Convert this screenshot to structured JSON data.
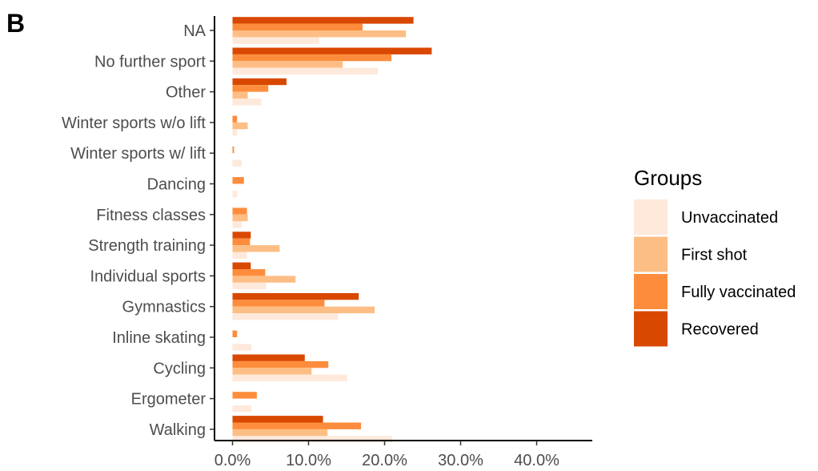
{
  "panel_label": "B",
  "colors": {
    "Unvaccinated": "#FEE9DB",
    "First shot": "#FDBE85",
    "Fully vaccinated": "#FD8D3C",
    "Recovered": "#D94801"
  },
  "chart_data": {
    "type": "bar",
    "orientation": "horizontal",
    "categories": [
      "NA",
      "No further sport",
      "Other",
      "Winter sports w/o lift",
      "Winter sports w/ lift",
      "Dancing",
      "Fitness classes",
      "Strength training",
      "Individual sports",
      "Gymnastics",
      "Inline skating",
      "Cycling",
      "Ergometer",
      "Walking"
    ],
    "series": [
      {
        "name": "Unvaccinated",
        "values": [
          11.4,
          19.1,
          3.8,
          0.6,
          1.2,
          0.6,
          1.2,
          1.9,
          4.4,
          13.9,
          2.5,
          15.1,
          2.5,
          21.0
        ]
      },
      {
        "name": "First shot",
        "values": [
          22.8,
          14.5,
          2.0,
          2.0,
          0.0,
          0.0,
          2.0,
          6.2,
          8.3,
          18.7,
          0.0,
          10.4,
          0.0,
          12.5
        ]
      },
      {
        "name": "Fully vaccinated",
        "values": [
          17.1,
          20.9,
          4.7,
          0.6,
          0.2,
          1.5,
          1.9,
          2.3,
          4.3,
          12.1,
          0.6,
          12.6,
          3.2,
          16.9
        ]
      },
      {
        "name": "Recovered",
        "values": [
          23.8,
          26.2,
          7.1,
          0.0,
          0.0,
          0.0,
          0.0,
          2.4,
          2.4,
          16.6,
          0.0,
          9.5,
          0.0,
          11.9
        ]
      }
    ],
    "xticks": [
      "0.0%",
      "10.0%",
      "20.0%",
      "30.0%",
      "40.0%"
    ],
    "xlim": [
      0,
      47
    ],
    "xlabel": "",
    "ylabel": "",
    "grid": false,
    "legend": {
      "title": "Groups",
      "position": "right",
      "entries": [
        "Unvaccinated",
        "First shot",
        "Fully vaccinated",
        "Recovered"
      ]
    }
  }
}
